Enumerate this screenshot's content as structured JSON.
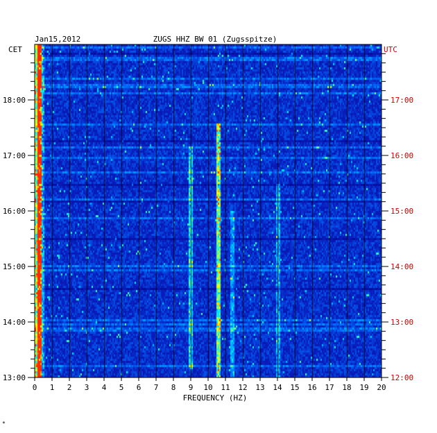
{
  "header": {
    "date": "Jan15,2012",
    "station": "ZUGS HHZ BW 01 (Zugsspitze)",
    "left_tz": "CET",
    "right_tz": "UTC"
  },
  "footnote": "*",
  "colors": {
    "background_field": "#0a1aa8",
    "hot": "#ff2a00",
    "warm": "#ffff00",
    "mid": "#00e0ff",
    "utc_text": "#cc0000"
  },
  "chart_data": {
    "type": "heatmap",
    "title": "ZUGS HHZ BW 01 (Zugsspitze)",
    "date": "Jan15,2012",
    "xlabel": "FREQUENCY (HZ)",
    "xlim": [
      0,
      20
    ],
    "x_ticks": [
      "0",
      "1",
      "2",
      "3",
      "4",
      "5",
      "6",
      "7",
      "8",
      "9",
      "10",
      "11",
      "12",
      "13",
      "14",
      "15",
      "16",
      "17",
      "18",
      "19",
      "20"
    ],
    "ylim_cet": [
      "13:00",
      "19:00"
    ],
    "y_ticks_left": [
      {
        "label": "18:00",
        "hour": 18
      },
      {
        "label": "17:00",
        "hour": 17
      },
      {
        "label": "16:00",
        "hour": 16
      },
      {
        "label": "15:00",
        "hour": 15
      },
      {
        "label": "14:00",
        "hour": 14
      },
      {
        "label": "13:00",
        "hour": 13
      }
    ],
    "y_ticks_right": [
      {
        "label": "17:00",
        "hour": 18
      },
      {
        "label": "16:00",
        "hour": 17
      },
      {
        "label": "15:00",
        "hour": 16
      },
      {
        "label": "14:00",
        "hour": 15
      },
      {
        "label": "13:00",
        "hour": 14
      },
      {
        "label": "12:00",
        "hour": 13
      }
    ],
    "grid": "vertical lines at each 1 Hz",
    "features": [
      {
        "name": "low-frequency band",
        "freq_hz": 0.3,
        "intensity": "high",
        "from": "13:00",
        "to": "19:00"
      },
      {
        "name": "10.6 Hz line",
        "freq_hz": 10.6,
        "intensity": "high",
        "from": "13:00",
        "to": "17:35"
      },
      {
        "name": "9.0 Hz line",
        "freq_hz": 9.0,
        "intensity": "medium",
        "from": "13:10",
        "to": "17:10"
      },
      {
        "name": "11.4 Hz line",
        "freq_hz": 11.4,
        "intensity": "low",
        "from": "13:00",
        "to": "16:00"
      },
      {
        "name": "14.0 Hz line",
        "freq_hz": 14.0,
        "intensity": "low",
        "from": "13:00",
        "to": "16:30"
      }
    ]
  }
}
